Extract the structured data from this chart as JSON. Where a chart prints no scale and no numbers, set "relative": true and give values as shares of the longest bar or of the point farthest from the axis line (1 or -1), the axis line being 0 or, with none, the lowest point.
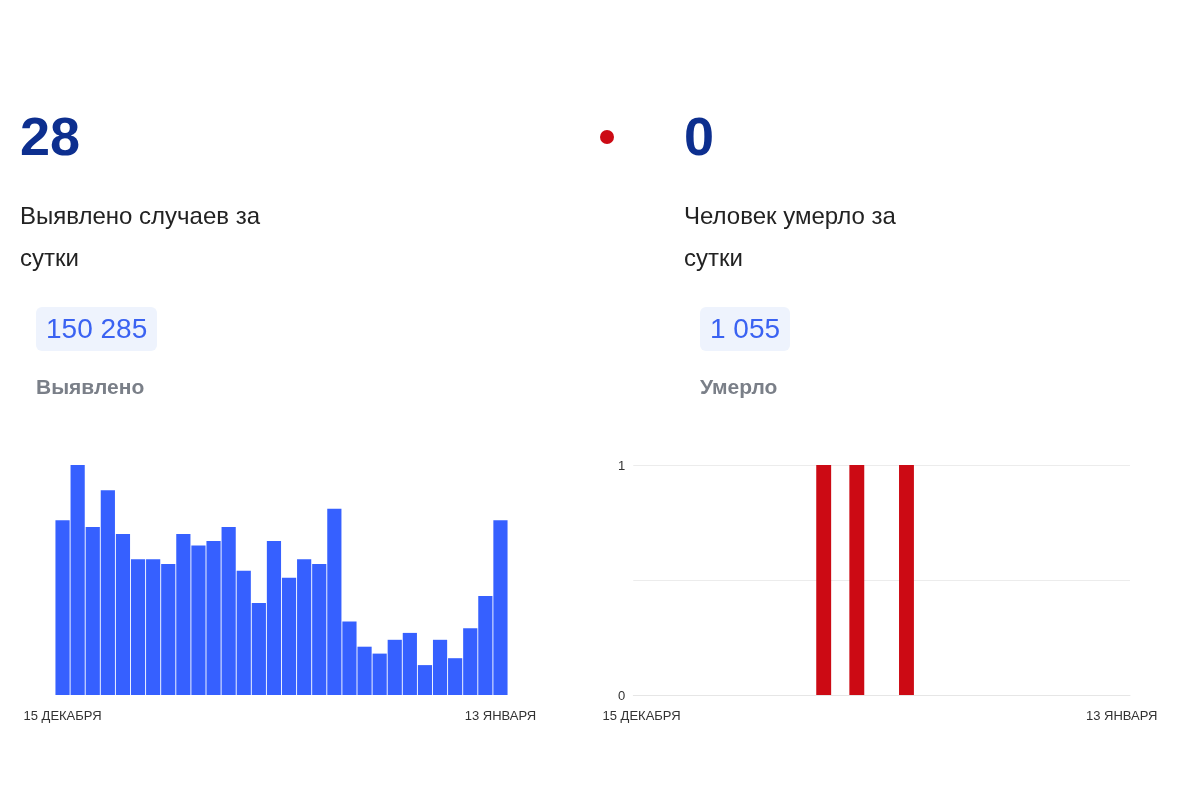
{
  "chart_data": [
    {
      "type": "bar",
      "title": "28",
      "subtitle": "Выявлено случаев за сутки",
      "annotations": [
        "150 285",
        "Выявлено"
      ],
      "relative": true,
      "color": "#3660ff",
      "categories": [
        "15 ДЕКАБРЯ",
        null,
        null,
        null,
        null,
        null,
        null,
        null,
        null,
        null,
        null,
        null,
        null,
        null,
        null,
        null,
        null,
        null,
        null,
        null,
        null,
        null,
        null,
        null,
        null,
        null,
        null,
        null,
        null,
        "13 ЯНВАРЯ"
      ],
      "values": [
        0.76,
        1,
        0.73,
        0.89,
        0.7,
        0.59,
        0.59,
        0.57,
        0.7,
        0.65,
        0.67,
        0.73,
        0.54,
        0.4,
        0.67,
        0.51,
        0.59,
        0.57,
        0.81,
        0.32,
        0.21,
        0.18,
        0.24,
        0.27,
        0.13,
        0.24,
        0.16,
        0.29,
        0.43,
        0.76
      ]
    },
    {
      "type": "bar",
      "title": "0",
      "subtitle": "Человек умерло за сутки",
      "annotations": [
        "1 055",
        "Умерло"
      ],
      "color": "#cc0a14",
      "grid": "y",
      "categories": [
        "15 ДЕКАБРЯ",
        null,
        null,
        null,
        null,
        null,
        null,
        null,
        null,
        null,
        null,
        null,
        null,
        null,
        null,
        null,
        null,
        null,
        null,
        null,
        null,
        null,
        null,
        null,
        null,
        null,
        null,
        null,
        null,
        "13 ЯНВАРЯ"
      ],
      "values": [
        0,
        0,
        0,
        0,
        0,
        0,
        0,
        0,
        0,
        0,
        0,
        1,
        0,
        1,
        0,
        0,
        1,
        0,
        0,
        0,
        0,
        0,
        0,
        0,
        0,
        0,
        0,
        0,
        0,
        0
      ],
      "ylim": [
        0,
        1
      ],
      "yticks": [
        0,
        {
          "value": 0.5,
          "label": null
        },
        1
      ]
    }
  ]
}
